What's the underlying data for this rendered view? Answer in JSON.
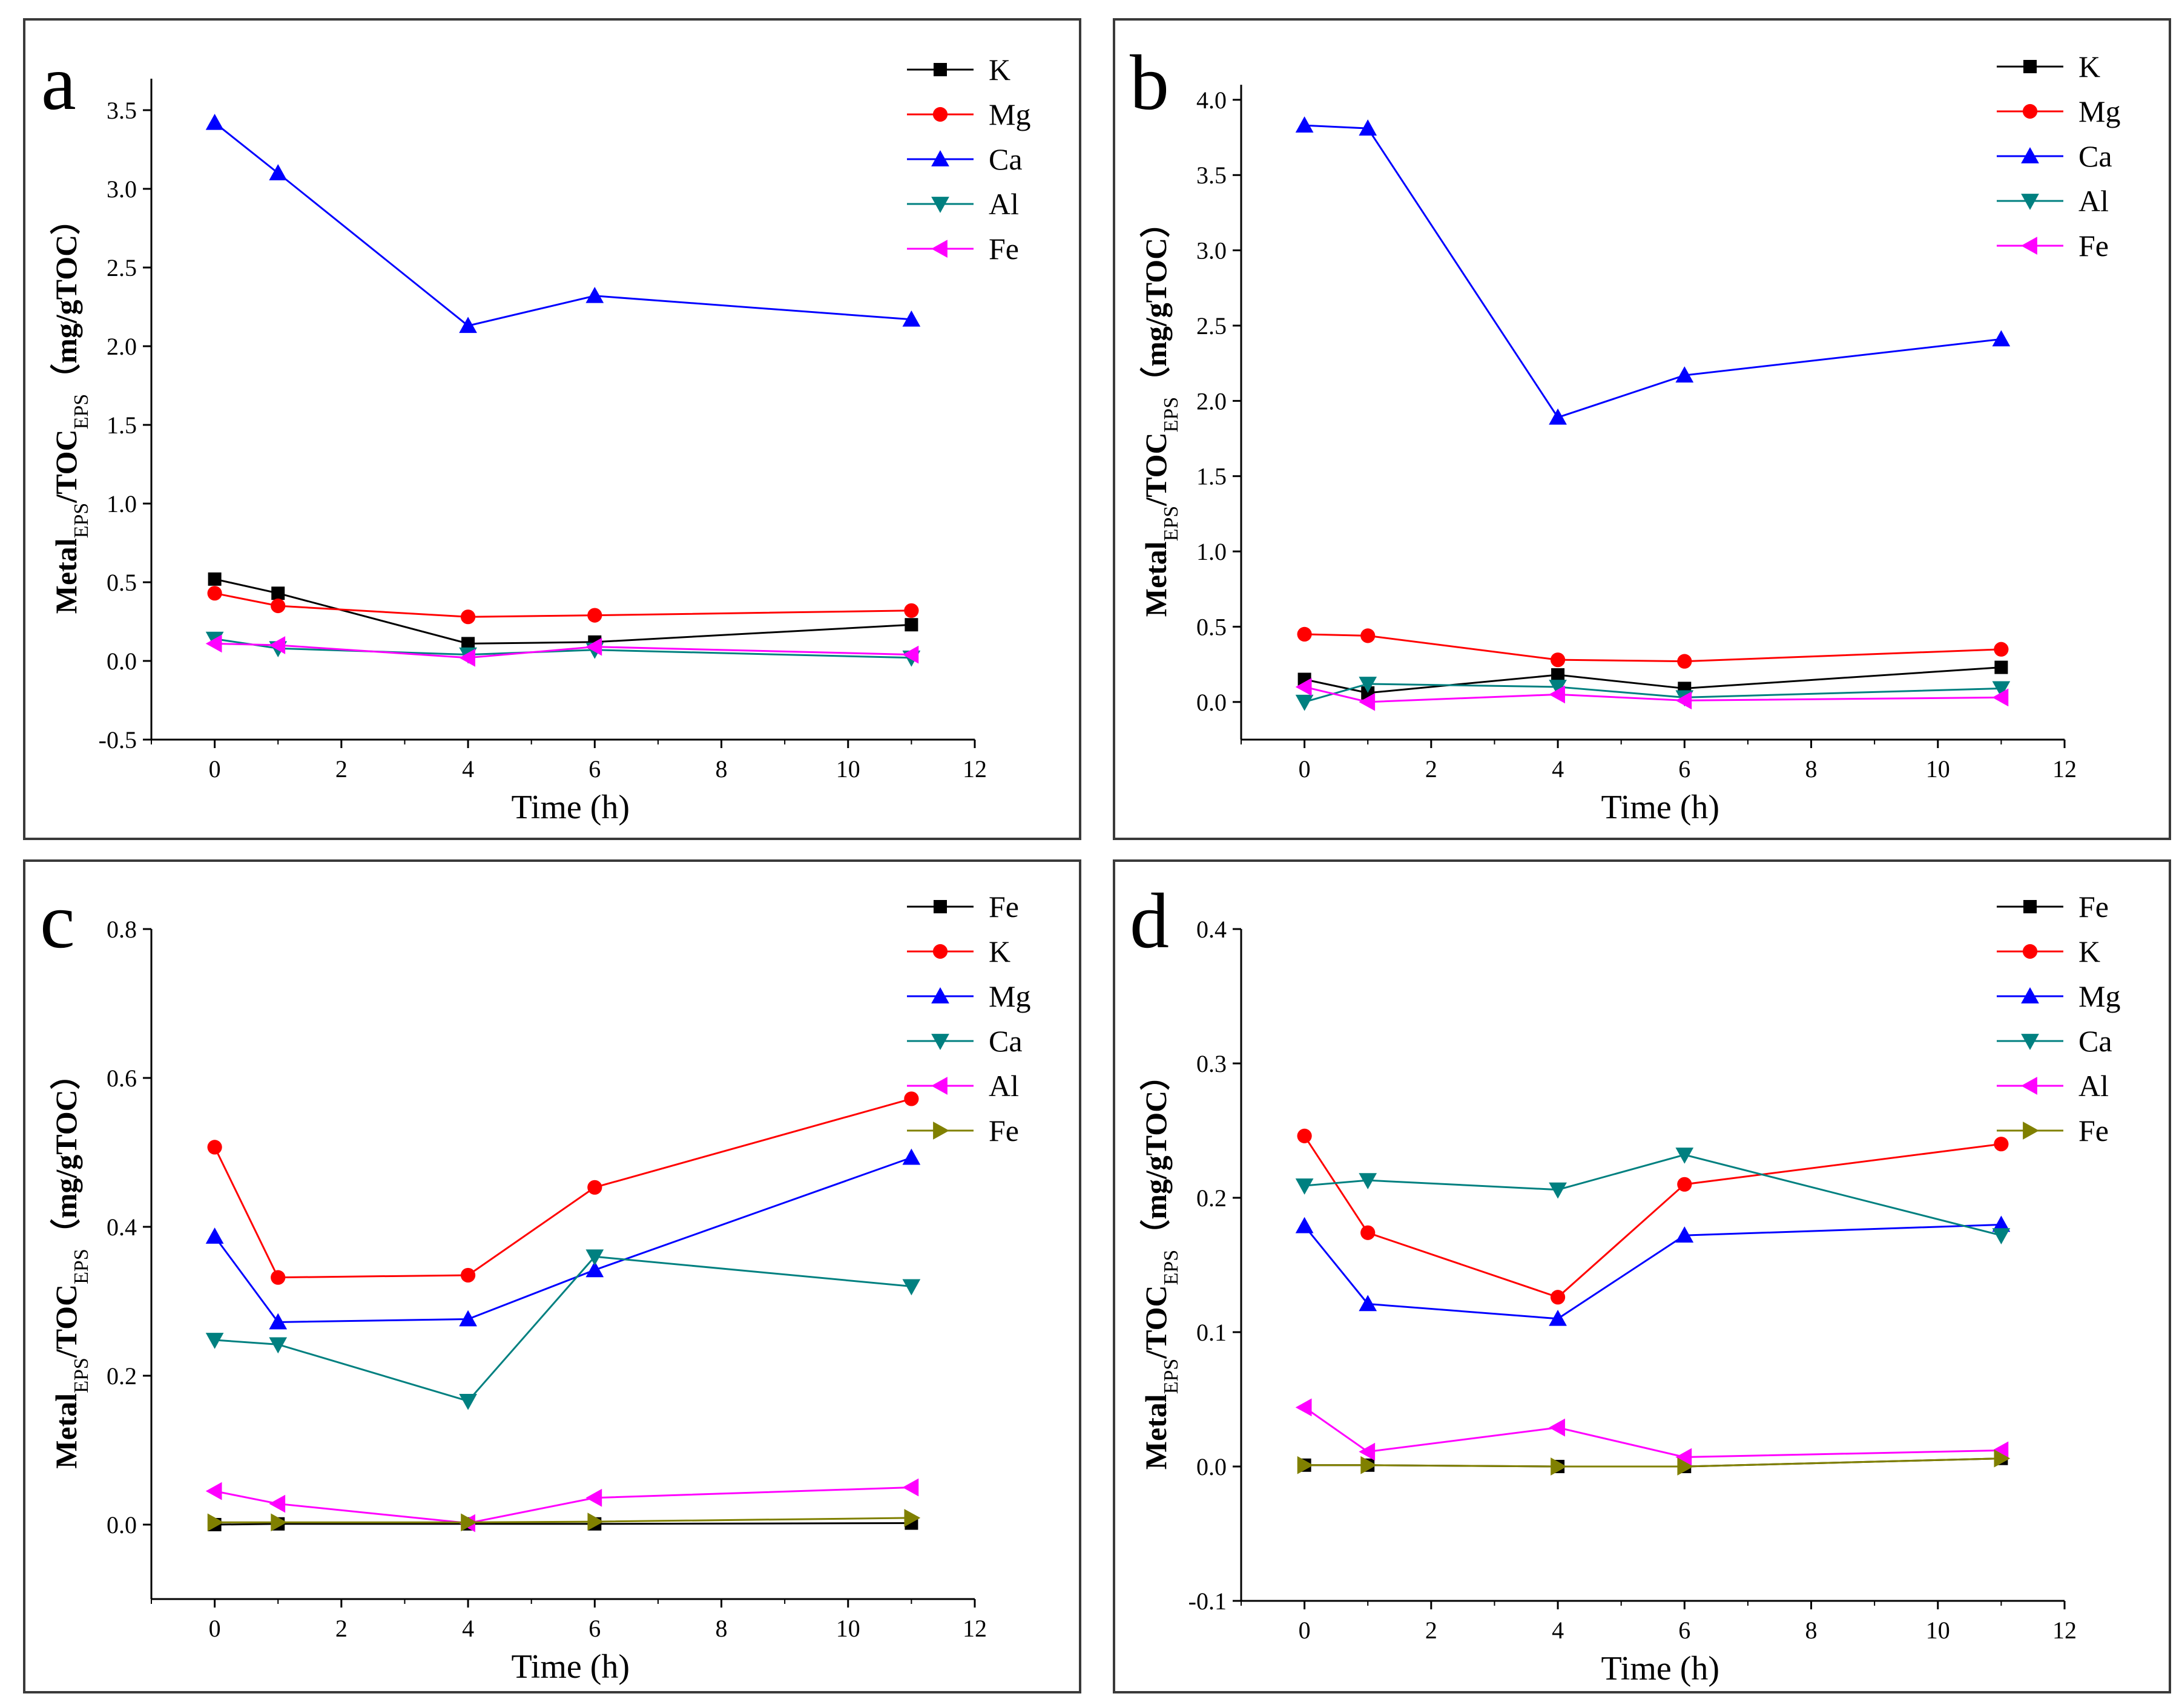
{
  "chart_data": [
    {
      "panel": "a",
      "type": "line",
      "xlabel": "Time (h)",
      "ylabel_parts": [
        "Metal",
        "EPS",
        "/TOC",
        "EPS",
        "（mg/gTOC）"
      ],
      "xlim": [
        -1,
        12
      ],
      "ylim": [
        -0.5,
        3.7
      ],
      "xticks": [
        0,
        2,
        4,
        6,
        8,
        10,
        12
      ],
      "yticks": [
        -0.5,
        0.0,
        0.5,
        1.0,
        1.5,
        2.0,
        2.5,
        3.0,
        3.5
      ],
      "ytick_labels": [
        "-0.5",
        "0.0",
        "0.5",
        "1.0",
        "1.5",
        "2.0",
        "2.5",
        "3.0",
        "3.5"
      ],
      "x": [
        0,
        1,
        4,
        6,
        11
      ],
      "series": [
        {
          "name": "K",
          "color": "#000000",
          "marker": "square",
          "values": [
            0.52,
            0.43,
            0.11,
            0.12,
            0.23
          ]
        },
        {
          "name": "Mg",
          "color": "#ff0000",
          "marker": "circle",
          "values": [
            0.43,
            0.35,
            0.28,
            0.29,
            0.32
          ]
        },
        {
          "name": "Ca",
          "color": "#0000ff",
          "marker": "triangle-up",
          "values": [
            3.42,
            3.1,
            2.13,
            2.32,
            2.17
          ]
        },
        {
          "name": "Al",
          "color": "#008080",
          "marker": "triangle-down",
          "values": [
            0.14,
            0.08,
            0.04,
            0.07,
            0.02
          ]
        },
        {
          "name": "Fe",
          "color": "#ff00ff",
          "marker": "triangle-left",
          "values": [
            0.11,
            0.1,
            0.02,
            0.09,
            0.04
          ]
        }
      ]
    },
    {
      "panel": "b",
      "type": "line",
      "xlabel": "Time (h)",
      "ylabel_parts": [
        "Metal",
        "EPS",
        "/TOC",
        "EPS",
        "（mg/gTOC）"
      ],
      "xlim": [
        -1,
        12
      ],
      "ylim": [
        -0.25,
        4.1
      ],
      "xticks": [
        0,
        2,
        4,
        6,
        8,
        10,
        12
      ],
      "yticks": [
        0.0,
        0.5,
        1.0,
        1.5,
        2.0,
        2.5,
        3.0,
        3.5,
        4.0
      ],
      "ytick_labels": [
        "0.0",
        "0.5",
        "1.0",
        "1.5",
        "2.0",
        "2.5",
        "3.0",
        "3.5",
        "4.0"
      ],
      "x": [
        0,
        1,
        4,
        6,
        11
      ],
      "series": [
        {
          "name": "K",
          "color": "#000000",
          "marker": "square",
          "values": [
            0.15,
            0.06,
            0.18,
            0.09,
            0.23
          ]
        },
        {
          "name": "Mg",
          "color": "#ff0000",
          "marker": "circle",
          "values": [
            0.45,
            0.44,
            0.28,
            0.27,
            0.35
          ]
        },
        {
          "name": "Ca",
          "color": "#0000ff",
          "marker": "triangle-up",
          "values": [
            3.83,
            3.81,
            1.89,
            2.17,
            2.41
          ]
        },
        {
          "name": "Al",
          "color": "#008080",
          "marker": "triangle-down",
          "values": [
            0.0,
            0.12,
            0.1,
            0.03,
            0.09
          ]
        },
        {
          "name": "Fe",
          "color": "#ff00ff",
          "marker": "triangle-left",
          "values": [
            0.1,
            0.0,
            0.05,
            0.01,
            0.03
          ]
        }
      ]
    },
    {
      "panel": "c",
      "type": "line",
      "xlabel": "Time (h)",
      "ylabel_parts": [
        "Metal",
        "EPS",
        "/TOC",
        "EPS",
        "（mg/gTOC）"
      ],
      "xlim": [
        -1,
        12
      ],
      "ylim": [
        -0.1,
        0.8
      ],
      "xticks": [
        0,
        2,
        4,
        6,
        8,
        10,
        12
      ],
      "yticks": [
        0.0,
        0.2,
        0.4,
        0.6,
        0.8
      ],
      "ytick_labels": [
        "0.0",
        "0.2",
        "0.4",
        "0.6",
        "0.8"
      ],
      "x": [
        0,
        1,
        4,
        6,
        11
      ],
      "series": [
        {
          "name": "Fe",
          "color": "#000000",
          "marker": "square",
          "values": [
            0.0,
            0.001,
            0.001,
            0.001,
            0.002
          ]
        },
        {
          "name": "K",
          "color": "#ff0000",
          "marker": "circle",
          "values": [
            0.507,
            0.332,
            0.335,
            0.453,
            0.572
          ]
        },
        {
          "name": "Mg",
          "color": "#0000ff",
          "marker": "triangle-up",
          "values": [
            0.387,
            0.272,
            0.276,
            0.342,
            0.493
          ]
        },
        {
          "name": "Ca",
          "color": "#008080",
          "marker": "triangle-down",
          "values": [
            0.248,
            0.242,
            0.166,
            0.36,
            0.32
          ]
        },
        {
          "name": "Al",
          "color": "#ff00ff",
          "marker": "triangle-left",
          "values": [
            0.045,
            0.028,
            0.002,
            0.036,
            0.05
          ]
        },
        {
          "name": "Fe",
          "color": "#808000",
          "marker": "triangle-right",
          "values": [
            0.003,
            0.003,
            0.003,
            0.004,
            0.009
          ]
        }
      ]
    },
    {
      "panel": "d",
      "type": "line",
      "xlabel": "Time (h)",
      "ylabel_parts": [
        "Metal",
        "EPS",
        "/TOC",
        "EPS",
        "（mg/gTOC）"
      ],
      "xlim": [
        -1,
        12
      ],
      "ylim": [
        -0.1,
        0.4
      ],
      "xticks": [
        0,
        2,
        4,
        6,
        8,
        10,
        12
      ],
      "yticks": [
        -0.1,
        0.0,
        0.1,
        0.2,
        0.3,
        0.4
      ],
      "ytick_labels": [
        "-0.1",
        "0.0",
        "0.1",
        "0.2",
        "0.3",
        "0.4"
      ],
      "x": [
        0,
        1,
        4,
        6,
        11
      ],
      "series": [
        {
          "name": "Fe",
          "color": "#000000",
          "marker": "square",
          "values": [
            0.001,
            0.001,
            0.0,
            0.0,
            0.006
          ]
        },
        {
          "name": "K",
          "color": "#ff0000",
          "marker": "circle",
          "values": [
            0.246,
            0.174,
            0.126,
            0.21,
            0.24
          ]
        },
        {
          "name": "Mg",
          "color": "#0000ff",
          "marker": "triangle-up",
          "values": [
            0.179,
            0.121,
            0.11,
            0.172,
            0.18
          ]
        },
        {
          "name": "Ca",
          "color": "#008080",
          "marker": "triangle-down",
          "values": [
            0.209,
            0.213,
            0.206,
            0.232,
            0.172
          ]
        },
        {
          "name": "Al",
          "color": "#ff00ff",
          "marker": "triangle-left",
          "values": [
            0.044,
            0.011,
            0.029,
            0.007,
            0.012
          ]
        },
        {
          "name": "Fe",
          "color": "#808000",
          "marker": "triangle-right",
          "values": [
            0.001,
            0.001,
            0.0,
            0.0,
            0.006
          ]
        }
      ]
    }
  ]
}
